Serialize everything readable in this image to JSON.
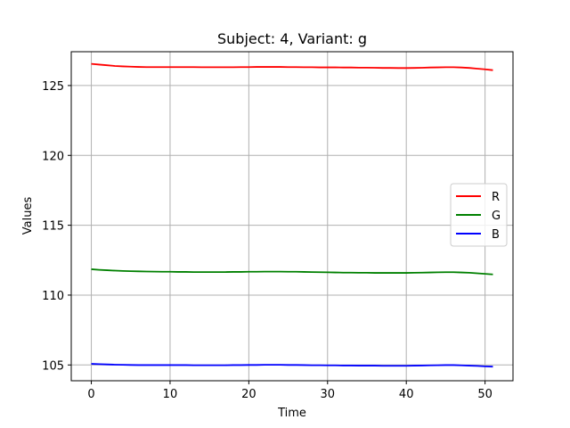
{
  "chart_data": {
    "type": "line",
    "title": "Subject: 4, Variant: g",
    "xlabel": "Time",
    "ylabel": "Values",
    "xlim": [
      -2.55,
      53.55
    ],
    "ylim": [
      103.87,
      127.42
    ],
    "xticks": [
      0,
      10,
      20,
      30,
      40,
      50
    ],
    "yticks": [
      105,
      110,
      115,
      120,
      125
    ],
    "grid": true,
    "legend_position": "center-right",
    "x": [
      0,
      1,
      2,
      3,
      4,
      5,
      6,
      7,
      8,
      9,
      10,
      11,
      12,
      13,
      14,
      15,
      16,
      17,
      18,
      19,
      20,
      21,
      22,
      23,
      24,
      25,
      26,
      27,
      28,
      29,
      30,
      31,
      32,
      33,
      34,
      35,
      36,
      37,
      38,
      39,
      40,
      41,
      42,
      43,
      44,
      45,
      46,
      47,
      48,
      49,
      50,
      51
    ],
    "series": [
      {
        "name": "R",
        "color": "#ff0000",
        "values": [
          126.55,
          126.5,
          126.45,
          126.4,
          126.37,
          126.35,
          126.33,
          126.32,
          126.32,
          126.32,
          126.32,
          126.32,
          126.32,
          126.32,
          126.31,
          126.31,
          126.31,
          126.31,
          126.31,
          126.32,
          126.32,
          126.33,
          126.33,
          126.33,
          126.33,
          126.32,
          126.32,
          126.31,
          126.31,
          126.3,
          126.3,
          126.3,
          126.29,
          126.29,
          126.28,
          126.28,
          126.27,
          126.26,
          126.26,
          126.25,
          126.25,
          126.26,
          126.27,
          126.29,
          126.3,
          126.31,
          126.31,
          126.29,
          126.26,
          126.21,
          126.16,
          126.1
        ]
      },
      {
        "name": "G",
        "color": "#008000",
        "values": [
          111.85,
          111.81,
          111.78,
          111.75,
          111.73,
          111.71,
          111.7,
          111.69,
          111.68,
          111.67,
          111.67,
          111.66,
          111.66,
          111.65,
          111.65,
          111.65,
          111.65,
          111.65,
          111.66,
          111.66,
          111.67,
          111.67,
          111.68,
          111.68,
          111.68,
          111.67,
          111.67,
          111.66,
          111.65,
          111.64,
          111.63,
          111.62,
          111.61,
          111.61,
          111.6,
          111.6,
          111.59,
          111.59,
          111.59,
          111.59,
          111.59,
          111.6,
          111.61,
          111.62,
          111.63,
          111.64,
          111.64,
          111.62,
          111.6,
          111.56,
          111.52,
          111.48
        ]
      },
      {
        "name": "B",
        "color": "#0000ff",
        "values": [
          105.08,
          105.06,
          105.04,
          105.02,
          105.01,
          105.0,
          104.99,
          104.99,
          104.99,
          104.99,
          104.99,
          104.99,
          104.99,
          104.98,
          104.98,
          104.98,
          104.98,
          104.98,
          104.99,
          104.99,
          105.0,
          105.0,
          105.01,
          105.01,
          105.01,
          105.0,
          105.0,
          104.99,
          104.98,
          104.98,
          104.97,
          104.97,
          104.96,
          104.96,
          104.95,
          104.95,
          104.95,
          104.94,
          104.94,
          104.94,
          104.94,
          104.95,
          104.96,
          104.97,
          104.98,
          104.99,
          104.99,
          104.97,
          104.95,
          104.93,
          104.9,
          104.88
        ]
      }
    ]
  }
}
